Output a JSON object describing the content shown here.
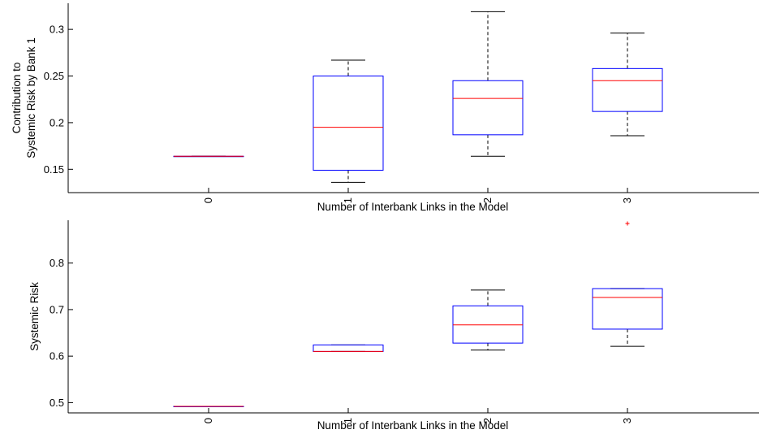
{
  "chart_data": [
    {
      "type": "box",
      "title": "",
      "xlabel": "Number of Interbank Links in the Model",
      "ylabel_lines": [
        "Contribution to",
        "Systemic Risk by Bank 1"
      ],
      "categories": [
        "0",
        "1",
        "2",
        "3"
      ],
      "ylim": [
        0.125,
        0.328
      ],
      "yticks": [
        0.15,
        0.2,
        0.25,
        0.3
      ],
      "ytick_labels": [
        "0.15",
        "0.2",
        "0.25",
        "0.3"
      ],
      "boxes": [
        {
          "category": "0",
          "whisker_low": 0.164,
          "q1": 0.164,
          "median": 0.164,
          "q3": 0.164,
          "whisker_high": 0.164,
          "outliers": []
        },
        {
          "category": "1",
          "whisker_low": 0.136,
          "q1": 0.149,
          "median": 0.195,
          "q3": 0.25,
          "whisker_high": 0.267,
          "outliers": []
        },
        {
          "category": "2",
          "whisker_low": 0.164,
          "q1": 0.187,
          "median": 0.226,
          "q3": 0.245,
          "whisker_high": 0.319,
          "outliers": []
        },
        {
          "category": "3",
          "whisker_low": 0.186,
          "q1": 0.212,
          "median": 0.245,
          "q3": 0.258,
          "whisker_high": 0.296,
          "outliers": []
        }
      ],
      "colors": {
        "box": "#0000ff",
        "median": "#ff0000",
        "whisker": "#000000",
        "outlier": "#ff0000"
      },
      "grid": false
    },
    {
      "type": "box",
      "title": "",
      "xlabel": "Number of Interbank Links in the Model",
      "ylabel_lines": [
        "Systemic Risk"
      ],
      "categories": [
        "0",
        "1",
        "2",
        "3"
      ],
      "ylim": [
        0.478,
        0.892
      ],
      "yticks": [
        0.5,
        0.6,
        0.7,
        0.8
      ],
      "ytick_labels": [
        "0.5",
        "0.6",
        "0.7",
        "0.8"
      ],
      "boxes": [
        {
          "category": "0",
          "whisker_low": 0.492,
          "q1": 0.492,
          "median": 0.492,
          "q3": 0.492,
          "whisker_high": 0.492,
          "outliers": []
        },
        {
          "category": "1",
          "whisker_low": 0.61,
          "q1": 0.61,
          "median": 0.61,
          "q3": 0.624,
          "whisker_high": 0.624,
          "outliers": []
        },
        {
          "category": "2",
          "whisker_low": 0.613,
          "q1": 0.628,
          "median": 0.667,
          "q3": 0.708,
          "whisker_high": 0.742,
          "outliers": []
        },
        {
          "category": "3",
          "whisker_low": 0.621,
          "q1": 0.658,
          "median": 0.726,
          "q3": 0.745,
          "whisker_high": 0.745,
          "outliers": [
            0.885
          ]
        }
      ],
      "colors": {
        "box": "#0000ff",
        "median": "#ff0000",
        "whisker": "#000000",
        "outlier": "#ff0000"
      },
      "grid": false
    }
  ]
}
